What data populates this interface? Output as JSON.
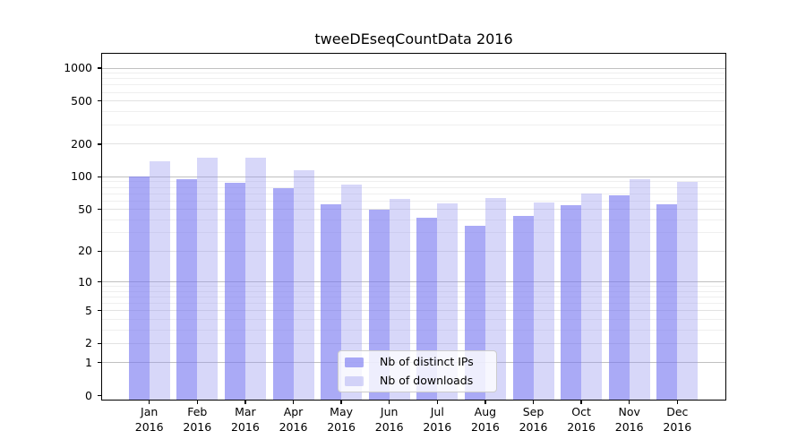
{
  "chart_data": {
    "type": "bar",
    "title": "tweeDEseqCountData 2016",
    "categories": [
      "Jan",
      "Feb",
      "Mar",
      "Apr",
      "May",
      "Jun",
      "Jul",
      "Aug",
      "Sep",
      "Oct",
      "Nov",
      "Dec"
    ],
    "x_year_label": "2016",
    "series": [
      {
        "name": "Nb of distinct IPs",
        "fill": "rgba(118,118,240,0.62)",
        "values": [
          100,
          95,
          88,
          79,
          56,
          50,
          42,
          35,
          43,
          55,
          67,
          56
        ]
      },
      {
        "name": "Nb of downloads",
        "fill": "rgba(150,150,240,0.38)",
        "values": [
          138,
          150,
          150,
          116,
          84,
          62,
          57,
          63,
          58,
          70,
          95,
          89
        ]
      }
    ],
    "yscale": "log1p",
    "yticks": [
      0,
      1,
      2,
      5,
      10,
      20,
      50,
      100,
      200,
      500,
      1000
    ],
    "ylim": [
      0,
      1370
    ],
    "grid": "on",
    "gridline_colors": {
      "major": "#c0c0c0",
      "labeled_minor": "#e2e2e2",
      "minor": "#efefef"
    },
    "axis_color": "#000000",
    "background": "#ffffff",
    "legend_position": "lower-center-inside"
  }
}
